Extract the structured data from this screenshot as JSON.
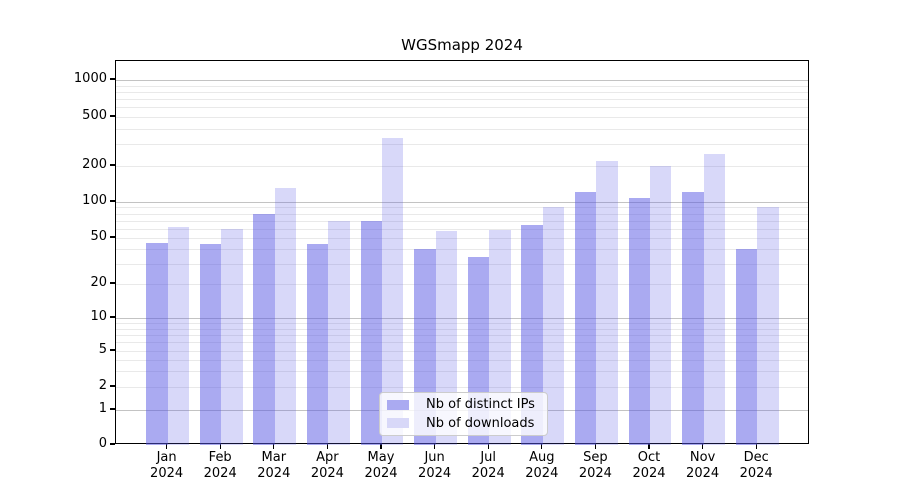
{
  "figure": {
    "title": "WGSmapp 2024"
  },
  "chart_data": {
    "type": "bar",
    "title": "WGSmapp 2024",
    "categories": [
      "Jan",
      "Feb",
      "Mar",
      "Apr",
      "May",
      "Jun",
      "Jul",
      "Aug",
      "Sep",
      "Oct",
      "Nov",
      "Dec"
    ],
    "x_tick_second_line": "2024",
    "series": [
      {
        "name": "Nb of distinct IPs",
        "values": [
          45,
          44,
          79,
          44,
          70,
          40,
          34,
          64,
          122,
          109,
          121,
          40
        ],
        "color": "rgba(85,85,227,0.5)",
        "solid_color": "#aaaaf1"
      },
      {
        "name": "Nb of downloads",
        "values": [
          62,
          60,
          131,
          70,
          340,
          57,
          58,
          90,
          220,
          200,
          250,
          91
        ],
        "color": "rgba(85,85,227,0.23)",
        "solid_color": "#d8d8f8"
      }
    ],
    "xlabel": "",
    "ylabel": "",
    "yscale": "symlog",
    "yticks": [
      0,
      1,
      2,
      5,
      10,
      20,
      50,
      100,
      200,
      500,
      1000
    ],
    "major_grid_values": [
      1,
      10,
      100,
      1000
    ],
    "ylim": [
      0,
      1400
    ],
    "grid": "both-horizontal",
    "legend_position": "lower-center",
    "spine_color": "#000000",
    "major_grid_color": "#c3c3c3",
    "minor_grid_color": "#e9e9e9"
  }
}
